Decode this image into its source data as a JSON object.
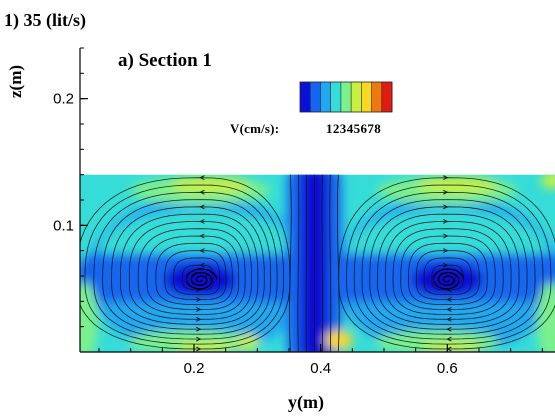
{
  "figure": {
    "case_title": "1) 35 (lit/s)",
    "section_title": "a) Section 1",
    "colorbar_label": "V(cm/s):",
    "colorbar_values": "12345678"
  },
  "colors": {
    "scale": [
      "#0a10d8",
      "#1466f0",
      "#22a8f0",
      "#36dcd8",
      "#7cf08c",
      "#c8f040",
      "#f8d820",
      "#f07810",
      "#e01c10"
    ]
  },
  "chart_data": {
    "type": "heatmap",
    "title": "a) Section 1",
    "xlabel": "y(m)",
    "ylabel": "z(m)",
    "x_ticks": [
      0.2,
      0.4,
      0.6
    ],
    "x_tick_labels": [
      "0.2",
      "0.4",
      "0.6"
    ],
    "y_ticks": [
      0.1,
      0.2
    ],
    "y_tick_labels": [
      "0.1",
      "0.2"
    ],
    "xlim": [
      0.02,
      0.77
    ],
    "ylim": [
      0,
      0.24
    ],
    "flow_extent": {
      "y": [
        0.02,
        0.77
      ],
      "z": [
        0,
        0.14
      ]
    },
    "colorbar": {
      "variable": "V",
      "unit": "cm/s",
      "ticks": [
        1,
        2,
        3,
        4,
        5,
        6,
        7,
        8
      ]
    },
    "vortices": [
      {
        "name": "left",
        "center": [
          0.21,
          0.057
        ]
      },
      {
        "name": "right",
        "center": [
          0.6,
          0.057
        ]
      }
    ],
    "central_jet": {
      "center_y": 0.39,
      "width_y": 0.07,
      "velocity": 1
    }
  }
}
